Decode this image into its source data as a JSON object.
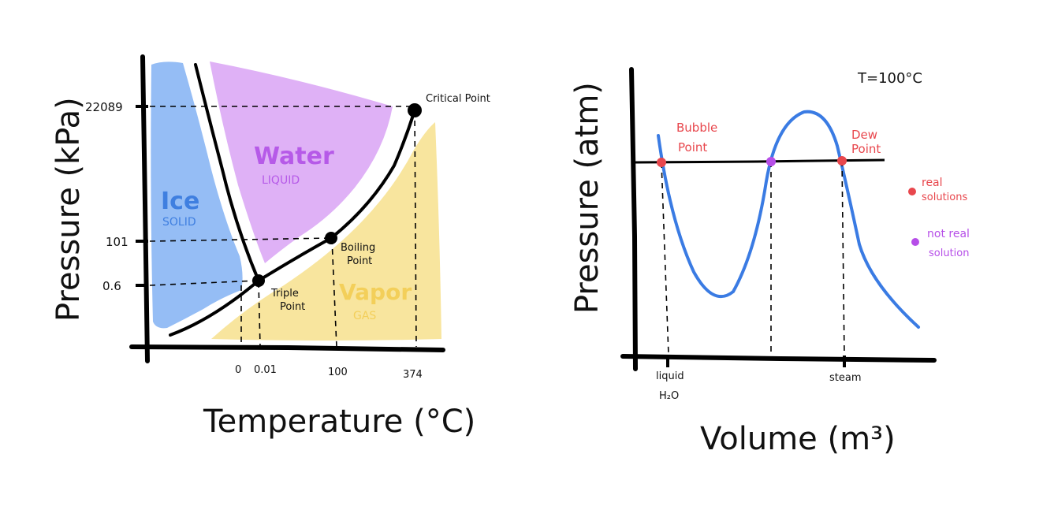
{
  "phase_diagram": {
    "y_axis_title": "Pressure (kPa)",
    "x_axis_title": "Temperature (°C)",
    "y_ticks": [
      "22089",
      "101",
      "0.6"
    ],
    "x_ticks": [
      "0",
      "0.01",
      "100",
      "374"
    ],
    "regions": {
      "ice": {
        "name": "Ice",
        "state": "SOLID",
        "color": "#95bdf5",
        "text_color": "#3f7fe0"
      },
      "water": {
        "name": "Water",
        "state": "LIQUID",
        "color": "#dfb1f6",
        "text_color": "#b65ae8"
      },
      "vapor": {
        "name": "Vapor",
        "state": "GAS",
        "color": "#f8e59e",
        "text_color": "#f3cf5a"
      }
    },
    "points": {
      "critical": "Critical Point",
      "boiling_line1": "Boiling",
      "boiling_line2": "Point",
      "triple_line1": "Triple",
      "triple_line2": "Point"
    }
  },
  "pv_diagram": {
    "y_axis_title": "Pressure (atm)",
    "x_axis_title": "Volume (m³)",
    "temperature_label": "T=100°C",
    "bubble_line1": "Bubble",
    "bubble_line2": "Point",
    "dew_line1": "Dew",
    "dew_line2": "Point",
    "x_tick_liquid_line1": "liquid",
    "x_tick_liquid_line2": "H₂O",
    "x_tick_steam": "steam",
    "legend": {
      "real_line1": "real",
      "real_line2": "solutions",
      "not_real_line1": "not real",
      "not_real_line2": "solution",
      "real_color": "#e8474d",
      "not_real_color": "#b64ee8"
    },
    "curve_color": "#3a7be3"
  }
}
